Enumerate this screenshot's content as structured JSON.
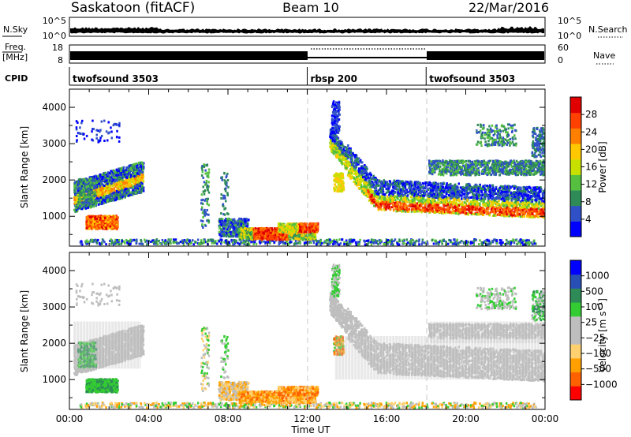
{
  "header": {
    "station": "Saskatoon (fitACF)",
    "beam": "Beam 10",
    "date": "22/Mar/2016"
  },
  "strips": {
    "nsky_label": "N.Sky",
    "nsky_ticks": [
      "10^5",
      "10^0"
    ],
    "nsearch_label": "N.Search",
    "nsearch_ticks": [
      "10^5",
      "10^0"
    ],
    "freq_label_1": "Freq.",
    "freq_label_2": "[MHz]",
    "freq_ticks": [
      "18",
      "8"
    ],
    "nave_label": "Nave",
    "nave_ticks": [
      "60",
      "0"
    ],
    "cpid_label": "CPID",
    "cpid_segments": [
      {
        "label": "twofsound 3503",
        "start_h": 0,
        "end_h": 12
      },
      {
        "label": "rbsp 200",
        "start_h": 12,
        "end_h": 18
      },
      {
        "label": "twofsound 3503",
        "start_h": 18,
        "end_h": 24
      }
    ]
  },
  "colors": {
    "power_scale": [
      "#0000ff",
      "#3050c8",
      "#2e8b57",
      "#55c040",
      "#c8e000",
      "#ffc800",
      "#ff8000",
      "#ff4000",
      "#e00000"
    ],
    "velocity_scale": [
      "#ff0000",
      "#ff6000",
      "#ffa000",
      "#ffd070",
      "#bebebe",
      "#bebebe",
      "#33cc33",
      "#2e8b57",
      "#2850b4",
      "#0000ff"
    ],
    "ground_scatter": "#bebebe"
  },
  "chart_data": [
    {
      "type": "heatmap",
      "title": "",
      "xlabel": "Time UT",
      "ylabel": "Slant Range [km]",
      "xlim_hours": [
        0,
        24
      ],
      "ylim": [
        180,
        4500
      ],
      "x_ticks": [
        "00:00",
        "04:00",
        "08:00",
        "12:00",
        "16:00",
        "20:00",
        "00:00"
      ],
      "y_ticks": [
        "1000",
        "2000",
        "3000",
        "4000"
      ],
      "colorbar": {
        "label": "Power [dB]",
        "range": [
          0,
          32
        ],
        "ticks": [
          "4",
          "8",
          "12",
          "16",
          "20",
          "24",
          "28"
        ]
      },
      "echo_regions": [
        {
          "t0": 0.2,
          "t1": 3.7,
          "r0": 900,
          "r1": 2400,
          "level": "mixed 8-20 dB"
        },
        {
          "t0": 0.8,
          "t1": 2.4,
          "r0": 600,
          "r1": 1000,
          "level": "strong 20-28 dB"
        },
        {
          "t0": 7.5,
          "t1": 11.8,
          "r0": 300,
          "r1": 900,
          "level": "strong 24-32 dB"
        },
        {
          "t0": 13.2,
          "t1": 24,
          "r0": 900,
          "r1": 2200,
          "level": "mixed 8-32 dB"
        }
      ]
    },
    {
      "type": "heatmap",
      "title": "",
      "xlabel": "Time UT",
      "ylabel": "Slant Range [km]",
      "xlim_hours": [
        0,
        24
      ],
      "ylim": [
        180,
        4500
      ],
      "x_ticks": [
        "00:00",
        "04:00",
        "08:00",
        "12:00",
        "16:00",
        "20:00",
        "00:00"
      ],
      "y_ticks": [
        "1000",
        "2000",
        "3000",
        "4000"
      ],
      "colorbar": {
        "label": "Velocity [m s^-1]",
        "ticks": [
          "1000",
          "500",
          "100",
          "25",
          "−25",
          "−100",
          "−500",
          "−1000"
        ]
      },
      "echo_regions": [
        {
          "t0": 0.2,
          "t1": 3.7,
          "r0": 900,
          "r1": 2400,
          "level": "ground scatter"
        },
        {
          "t0": 0.3,
          "t1": 2.4,
          "r0": 600,
          "r1": 1000,
          "level": "+25 to +100 m/s"
        },
        {
          "t0": 7.5,
          "t1": 12.6,
          "r0": 300,
          "r1": 800,
          "level": "-100 to -500 m/s"
        },
        {
          "t0": 13.2,
          "t1": 24,
          "r0": 900,
          "r1": 2200,
          "level": "ground scatter"
        }
      ]
    }
  ]
}
